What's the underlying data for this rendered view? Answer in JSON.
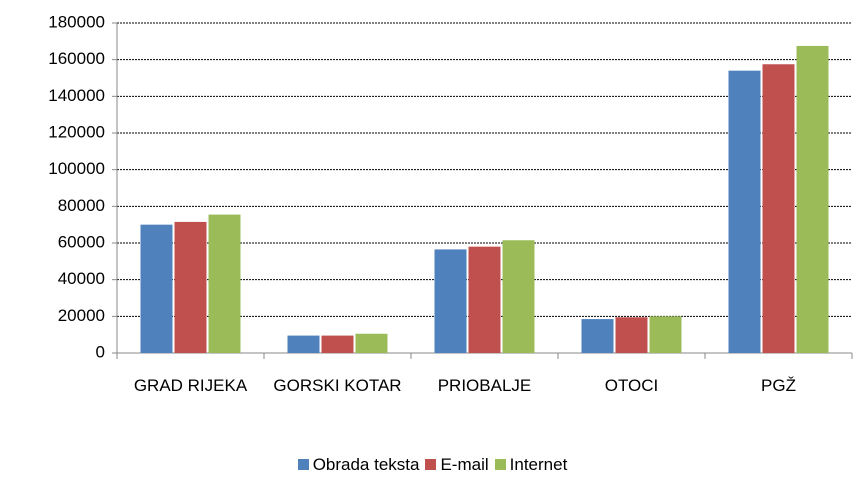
{
  "chart_data": {
    "type": "bar",
    "categories": [
      "GRAD RIJEKA",
      "GORSKI KOTAR",
      "PRIOBALJE",
      "OTOCI",
      "PGŽ"
    ],
    "series": [
      {
        "name": "Obrada teksta",
        "color": "#4f81bd",
        "values": [
          70000,
          9500,
          56500,
          18500,
          154000
        ]
      },
      {
        "name": "E-mail",
        "color": "#c0504d",
        "values": [
          71500,
          9500,
          58000,
          19500,
          157500
        ]
      },
      {
        "name": "Internet",
        "color": "#9bbb59",
        "values": [
          75500,
          10500,
          61500,
          20000,
          167500
        ]
      }
    ],
    "ylim": [
      0,
      180000
    ],
    "yticks": [
      0,
      20000,
      40000,
      60000,
      80000,
      100000,
      120000,
      140000,
      160000,
      180000
    ],
    "grid": true,
    "legend": "bottom"
  }
}
